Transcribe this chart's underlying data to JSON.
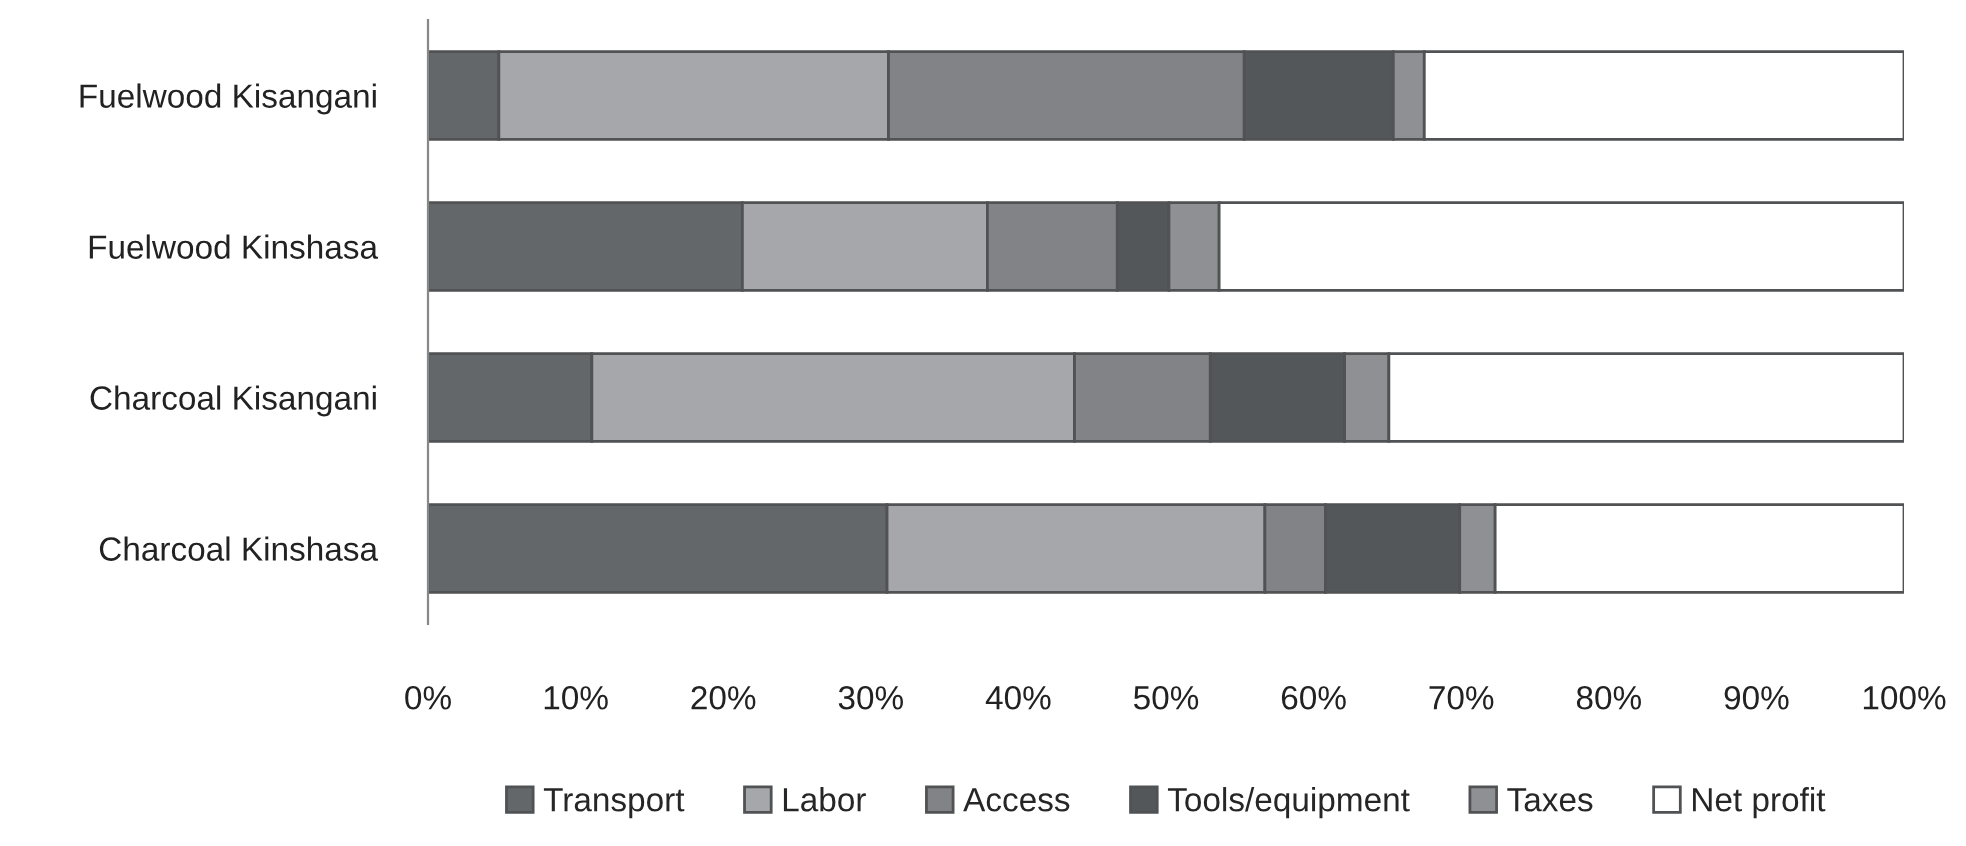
{
  "chart_data": {
    "type": "bar",
    "orientation": "horizontal",
    "stacked": true,
    "categories": [
      "Fuelwood Kisangani",
      "Fuelwood Kinshasa",
      "Charcoal Kisangani",
      "Charcoal Kinshasa"
    ],
    "series": [
      {
        "name": "Transport",
        "color": "#63676a",
        "values": [
          4.8,
          21.3,
          11.1,
          31.1
        ]
      },
      {
        "name": "Labor",
        "color": "#a6a7ab",
        "values": [
          26.4,
          16.6,
          32.7,
          25.6
        ]
      },
      {
        "name": "Access",
        "color": "#828386",
        "values": [
          24.1,
          8.8,
          9.2,
          4.1
        ]
      },
      {
        "name": "Tools/equipment",
        "color": "#53575a",
        "values": [
          10.1,
          3.5,
          9.1,
          9.1
        ]
      },
      {
        "name": "Taxes",
        "color": "#8f9093",
        "values": [
          2.1,
          3.4,
          3.0,
          2.4
        ]
      },
      {
        "name": "Net profit",
        "color": "#ffffff",
        "values": [
          32.5,
          46.4,
          34.9,
          27.7
        ]
      }
    ],
    "xlim": [
      0,
      100
    ],
    "xticks": [
      {
        "value": 0,
        "label": "0%"
      },
      {
        "value": 10,
        "label": "10%"
      },
      {
        "value": 20,
        "label": "20%"
      },
      {
        "value": 30,
        "label": "30%"
      },
      {
        "value": 40,
        "label": "40%"
      },
      {
        "value": 50,
        "label": "50%"
      },
      {
        "value": 60,
        "label": "60%"
      },
      {
        "value": 70,
        "label": "70%"
      },
      {
        "value": 80,
        "label": "80%"
      },
      {
        "value": 90,
        "label": "90%"
      },
      {
        "value": 100,
        "label": "100%"
      }
    ],
    "grid": false,
    "legend": "bottom"
  }
}
